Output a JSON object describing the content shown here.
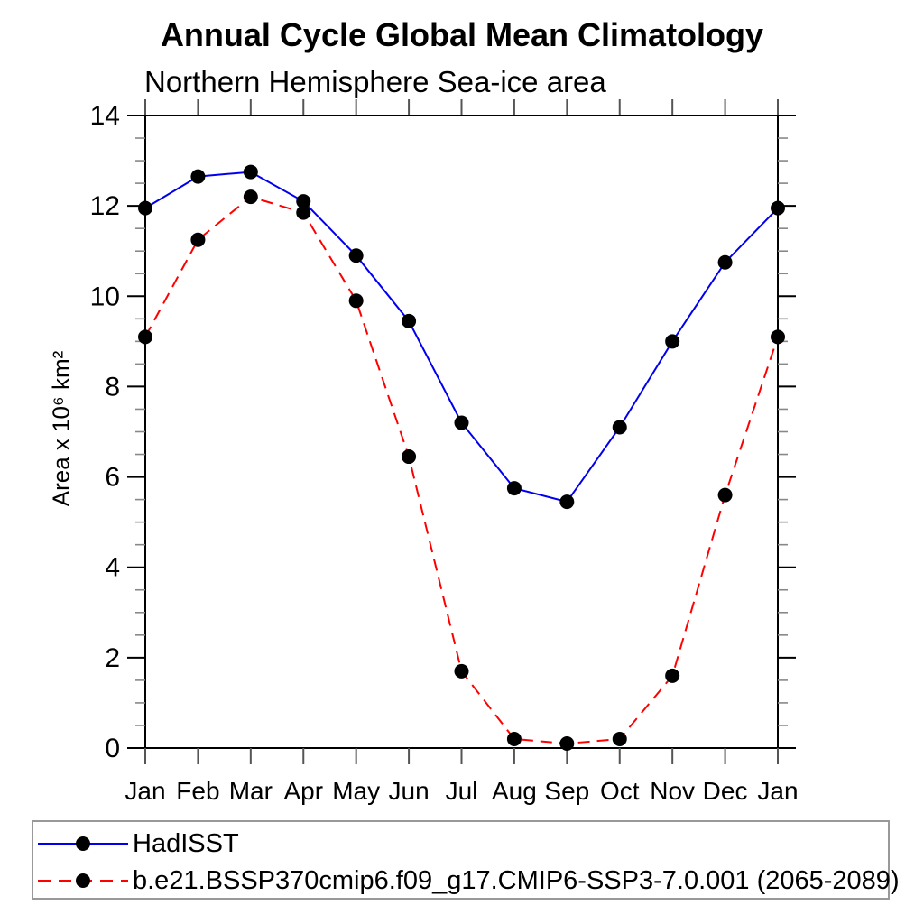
{
  "title": "Annual Cycle Global Mean Climatology",
  "subtitle": "Northern Hemisphere Sea-ice area",
  "y_axis_label": "Area x 10⁶ km²",
  "chart_data": {
    "type": "line",
    "categories": [
      "Jan",
      "Feb",
      "Mar",
      "Apr",
      "May",
      "Jun",
      "Jul",
      "Aug",
      "Sep",
      "Oct",
      "Nov",
      "Dec",
      "Jan"
    ],
    "series": [
      {
        "name": "HadISST",
        "line_color": "#0000ee",
        "line_style": "solid",
        "marker": "filled-circle",
        "marker_color": "#000000",
        "values": [
          11.95,
          12.65,
          12.75,
          12.1,
          10.9,
          9.45,
          7.2,
          5.75,
          5.45,
          7.1,
          9.0,
          10.75,
          11.95
        ]
      },
      {
        "name": "b.e21.BSSP370cmip6.f09_g17.CMIP6-SSP3-7.0.001 (2065-2089)",
        "line_color": "#ff0000",
        "line_style": "dashed",
        "marker": "filled-circle",
        "marker_color": "#000000",
        "values": [
          9.1,
          11.25,
          12.2,
          11.85,
          9.9,
          6.45,
          1.7,
          0.2,
          0.1,
          0.2,
          1.6,
          5.6,
          9.1
        ]
      }
    ],
    "xlabel": "",
    "ylabel": "Area x 10⁶ km²",
    "ylim": [
      0,
      14
    ],
    "y_major_ticks": [
      0,
      2,
      4,
      6,
      8,
      10,
      12,
      14
    ],
    "y_minor_step": 0.5,
    "grid": false,
    "frame": true,
    "legend_position": "bottom-left-box"
  },
  "colors": {
    "axis": "#000000",
    "major_tick": "#000000",
    "minor_tick": "#888888",
    "month_tick": "#555555",
    "legend_border": "#999999"
  }
}
